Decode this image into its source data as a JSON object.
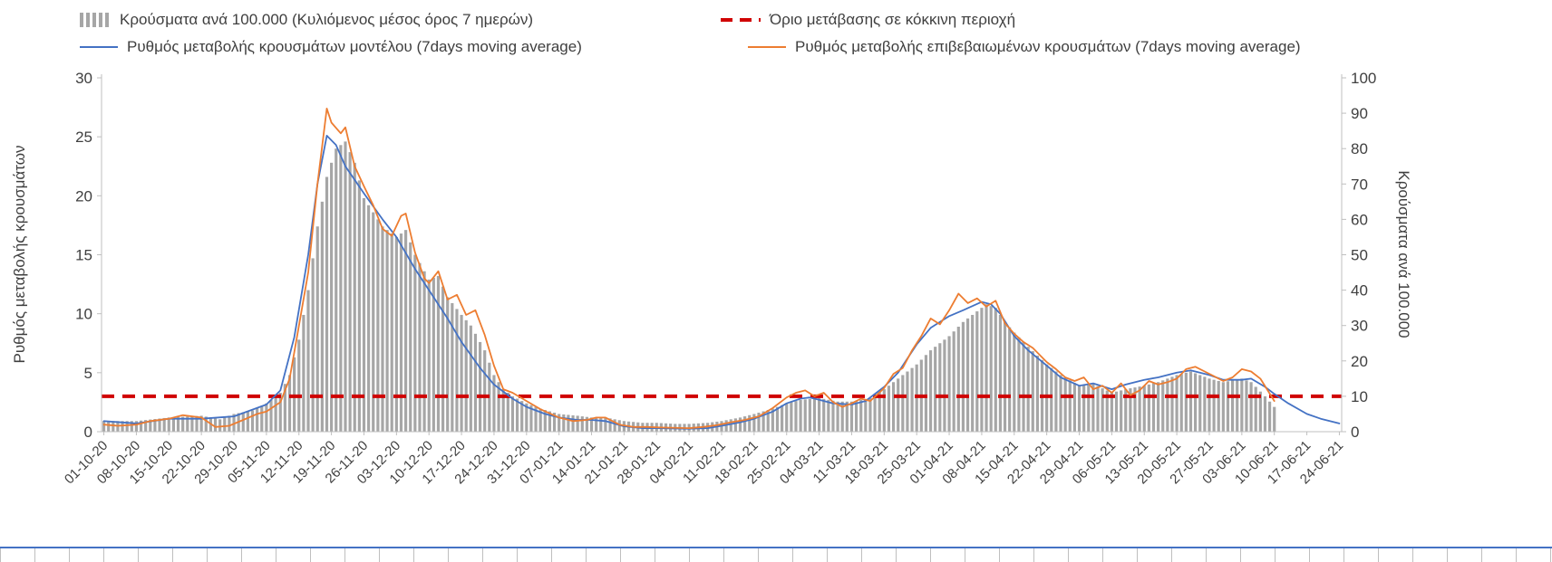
{
  "colors": {
    "bars": "#A6A6A6",
    "model_line": "#4472C4",
    "confirmed_line": "#ED7D31",
    "threshold_line": "#D00000",
    "axis": "#BFBFBF",
    "text": "#404040"
  },
  "chart_data": {
    "type": "combo-bar-line",
    "title": "",
    "legend_position": "top",
    "grid": false,
    "left_axis": {
      "label": "Ρυθμός μεταβολής κρουσμάτων",
      "range": [
        0,
        30
      ],
      "ticks": [
        0,
        5,
        10,
        15,
        20,
        25,
        30
      ]
    },
    "right_axis": {
      "label": "Κρούσματα ανά 100.000",
      "range": [
        0,
        100
      ],
      "ticks": [
        0,
        10,
        20,
        30,
        40,
        50,
        60,
        70,
        80,
        90,
        100
      ]
    },
    "x_axis": {
      "span_days": 266,
      "tick_interval_days": 7,
      "tick_labels": [
        "01-10-20",
        "08-10-20",
        "15-10-20",
        "22-10-20",
        "29-10-20",
        "05-11-20",
        "12-11-20",
        "19-11-20",
        "26-11-20",
        "03-12-20",
        "10-12-20",
        "17-12-20",
        "24-12-20",
        "31-12-20",
        "07-01-21",
        "14-01-21",
        "21-01-21",
        "28-01-21",
        "04-02-21",
        "11-02-21",
        "18-02-21",
        "25-02-21",
        "04-03-21",
        "11-03-21",
        "18-03-21",
        "25-03-21",
        "01-04-21",
        "08-04-21",
        "15-04-21",
        "22-04-21",
        "29-04-21",
        "06-05-21",
        "13-05-21",
        "20-05-21",
        "27-05-21",
        "03-06-21",
        "10-06-21",
        "17-06-21",
        "24-06-21"
      ]
    },
    "threshold": {
      "label": "Όριο μετάβασης σε κόκκινη περιοχή",
      "value": 3,
      "axis": "left",
      "style": "dashed",
      "color": "#D00000"
    },
    "series": [
      {
        "name": "Κρούσματα ανά 100.000 (Κυλιόμενος μέσος όρος 7 ημερών)",
        "type": "bar",
        "axis": "right",
        "color": "#A6A6A6",
        "points": [
          [
            0,
            3
          ],
          [
            7,
            3
          ],
          [
            14,
            4
          ],
          [
            21,
            4.5
          ],
          [
            25,
            3.5
          ],
          [
            28,
            5
          ],
          [
            32,
            6
          ],
          [
            35,
            8
          ],
          [
            38,
            11
          ],
          [
            40,
            16
          ],
          [
            42,
            26
          ],
          [
            44,
            40
          ],
          [
            46,
            58
          ],
          [
            48,
            72
          ],
          [
            50,
            80
          ],
          [
            52,
            82
          ],
          [
            54,
            76
          ],
          [
            56,
            66
          ],
          [
            58,
            62
          ],
          [
            60,
            58
          ],
          [
            63,
            55
          ],
          [
            65,
            57
          ],
          [
            67,
            50
          ],
          [
            70,
            43
          ],
          [
            72,
            44
          ],
          [
            74,
            38
          ],
          [
            77,
            33
          ],
          [
            79,
            30
          ],
          [
            82,
            23
          ],
          [
            84,
            16
          ],
          [
            86,
            12
          ],
          [
            88,
            10
          ],
          [
            91,
            8
          ],
          [
            94,
            6.5
          ],
          [
            98,
            5
          ],
          [
            102,
            4.5
          ],
          [
            105,
            4
          ],
          [
            108,
            4
          ],
          [
            112,
            3
          ],
          [
            116,
            2.5
          ],
          [
            119,
            2.5
          ],
          [
            123,
            2.2
          ],
          [
            126,
            2.2
          ],
          [
            130,
            2.5
          ],
          [
            133,
            3
          ],
          [
            137,
            4
          ],
          [
            140,
            5
          ],
          [
            144,
            6.5
          ],
          [
            147,
            8
          ],
          [
            150,
            9
          ],
          [
            154,
            9.5
          ],
          [
            158,
            8.5
          ],
          [
            161,
            8.5
          ],
          [
            165,
            9.5
          ],
          [
            168,
            12
          ],
          [
            171,
            15
          ],
          [
            175,
            19
          ],
          [
            178,
            23
          ],
          [
            182,
            27
          ],
          [
            185,
            31
          ],
          [
            188,
            34
          ],
          [
            190,
            36
          ],
          [
            192,
            35
          ],
          [
            194,
            31
          ],
          [
            196,
            28
          ],
          [
            199,
            24
          ],
          [
            203,
            19
          ],
          [
            206,
            16
          ],
          [
            210,
            13
          ],
          [
            213,
            13.5
          ],
          [
            217,
            11
          ],
          [
            220,
            12
          ],
          [
            224,
            13
          ],
          [
            227,
            14
          ],
          [
            231,
            16
          ],
          [
            234,
            17
          ],
          [
            238,
            15
          ],
          [
            241,
            14
          ],
          [
            245,
            15
          ],
          [
            247,
            14
          ],
          [
            250,
            10
          ],
          [
            252,
            7
          ]
        ]
      },
      {
        "name": "Ρυθμός μεταβολής κρουσμάτων μοντέλου (7days moving average)",
        "type": "line",
        "axis": "left",
        "color": "#4472C4",
        "points": [
          [
            0,
            0.9
          ],
          [
            7,
            0.7
          ],
          [
            14,
            1.1
          ],
          [
            21,
            1.1
          ],
          [
            28,
            1.3
          ],
          [
            35,
            2.3
          ],
          [
            38,
            3.5
          ],
          [
            41,
            8
          ],
          [
            44,
            15
          ],
          [
            46,
            21
          ],
          [
            48,
            25.1
          ],
          [
            50,
            24.3
          ],
          [
            52,
            22.5
          ],
          [
            56,
            20.2
          ],
          [
            60,
            18
          ],
          [
            63,
            16.5
          ],
          [
            67,
            13.8
          ],
          [
            70,
            12
          ],
          [
            74,
            9.6
          ],
          [
            77,
            7.6
          ],
          [
            81,
            5.4
          ],
          [
            84,
            4
          ],
          [
            88,
            2.8
          ],
          [
            91,
            2.1
          ],
          [
            95,
            1.5
          ],
          [
            98,
            1.2
          ],
          [
            102,
            1
          ],
          [
            105,
            1
          ],
          [
            108,
            0.9
          ],
          [
            112,
            0.45
          ],
          [
            116,
            0.3
          ],
          [
            119,
            0.3
          ],
          [
            126,
            0.25
          ],
          [
            130,
            0.3
          ],
          [
            133,
            0.5
          ],
          [
            137,
            0.8
          ],
          [
            140,
            1.1
          ],
          [
            144,
            1.7
          ],
          [
            147,
            2.4
          ],
          [
            150,
            2.8
          ],
          [
            152,
            2.9
          ],
          [
            154,
            2.7
          ],
          [
            157,
            2.4
          ],
          [
            161,
            2.3
          ],
          [
            164,
            2.6
          ],
          [
            168,
            3.8
          ],
          [
            171,
            5
          ],
          [
            175,
            7.4
          ],
          [
            178,
            8.8
          ],
          [
            182,
            9.8
          ],
          [
            185,
            10.3
          ],
          [
            189,
            11
          ],
          [
            191,
            10.8
          ],
          [
            193,
            10
          ],
          [
            196,
            8.1
          ],
          [
            199,
            6.9
          ],
          [
            203,
            5.6
          ],
          [
            206,
            4.6
          ],
          [
            210,
            3.9
          ],
          [
            213,
            4.1
          ],
          [
            217,
            3.6
          ],
          [
            220,
            4
          ],
          [
            224,
            4.4
          ],
          [
            227,
            4.6
          ],
          [
            231,
            5
          ],
          [
            234,
            5.2
          ],
          [
            238,
            4.8
          ],
          [
            241,
            4.4
          ],
          [
            245,
            4.4
          ],
          [
            247,
            4.5
          ],
          [
            250,
            3.8
          ],
          [
            252,
            3.2
          ],
          [
            255,
            2.4
          ],
          [
            259,
            1.5
          ],
          [
            262,
            1.1
          ],
          [
            266,
            0.7
          ]
        ]
      },
      {
        "name": "Ρυθμός μεταβολής επιβεβαιωμένων κρουσμάτων (7days moving average)",
        "type": "line",
        "axis": "left",
        "color": "#ED7D31",
        "points": [
          [
            0,
            0.6
          ],
          [
            3,
            0.5
          ],
          [
            7,
            0.6
          ],
          [
            10,
            0.9
          ],
          [
            14,
            1.1
          ],
          [
            17,
            1.4
          ],
          [
            21,
            1.2
          ],
          [
            24,
            0.4
          ],
          [
            27,
            0.5
          ],
          [
            30,
            1
          ],
          [
            33,
            1.5
          ],
          [
            35,
            1.7
          ],
          [
            38,
            2.5
          ],
          [
            40,
            4.5
          ],
          [
            42,
            9
          ],
          [
            44,
            13.5
          ],
          [
            46,
            21
          ],
          [
            48,
            27.4
          ],
          [
            49,
            26.2
          ],
          [
            51,
            25.3
          ],
          [
            52,
            25.8
          ],
          [
            54,
            22.5
          ],
          [
            56,
            20.8
          ],
          [
            58,
            19.2
          ],
          [
            60,
            17.2
          ],
          [
            62,
            16.6
          ],
          [
            64,
            18.3
          ],
          [
            65,
            18.5
          ],
          [
            67,
            15.2
          ],
          [
            69,
            13
          ],
          [
            70,
            12.6
          ],
          [
            72,
            13.6
          ],
          [
            74,
            11.2
          ],
          [
            76,
            11.6
          ],
          [
            78,
            9.9
          ],
          [
            80,
            10.3
          ],
          [
            82,
            8.2
          ],
          [
            84,
            5.6
          ],
          [
            86,
            3.6
          ],
          [
            88,
            3.3
          ],
          [
            91,
            2.6
          ],
          [
            94,
            1.9
          ],
          [
            98,
            1.2
          ],
          [
            101,
            0.9
          ],
          [
            104,
            1
          ],
          [
            106,
            1.2
          ],
          [
            108,
            1.2
          ],
          [
            111,
            0.6
          ],
          [
            114,
            0.4
          ],
          [
            117,
            0.4
          ],
          [
            120,
            0.35
          ],
          [
            126,
            0.3
          ],
          [
            129,
            0.4
          ],
          [
            132,
            0.55
          ],
          [
            135,
            0.8
          ],
          [
            138,
            1
          ],
          [
            141,
            1.3
          ],
          [
            144,
            2
          ],
          [
            147,
            2.9
          ],
          [
            149,
            3.3
          ],
          [
            151,
            3.5
          ],
          [
            153,
            3
          ],
          [
            155,
            3.3
          ],
          [
            157,
            2.5
          ],
          [
            159,
            2.1
          ],
          [
            161,
            2.4
          ],
          [
            163,
            2.8
          ],
          [
            165,
            2.6
          ],
          [
            168,
            3.7
          ],
          [
            170,
            4.9
          ],
          [
            172,
            5.4
          ],
          [
            174,
            6.9
          ],
          [
            176,
            8.1
          ],
          [
            178,
            9.6
          ],
          [
            180,
            9.1
          ],
          [
            182,
            10.3
          ],
          [
            184,
            11.7
          ],
          [
            186,
            10.9
          ],
          [
            188,
            11.3
          ],
          [
            190,
            10.6
          ],
          [
            192,
            11.1
          ],
          [
            194,
            9.2
          ],
          [
            196,
            8.3
          ],
          [
            198,
            7.6
          ],
          [
            200,
            7.1
          ],
          [
            203,
            5.9
          ],
          [
            205,
            5.3
          ],
          [
            207,
            4.6
          ],
          [
            209,
            4.3
          ],
          [
            211,
            4.6
          ],
          [
            213,
            3.6
          ],
          [
            215,
            3.9
          ],
          [
            217,
            3.3
          ],
          [
            219,
            4.1
          ],
          [
            221,
            3.1
          ],
          [
            223,
            3.5
          ],
          [
            225,
            4.3
          ],
          [
            227,
            4
          ],
          [
            229,
            4.2
          ],
          [
            231,
            4.5
          ],
          [
            233,
            5.3
          ],
          [
            235,
            5.5
          ],
          [
            237,
            5.1
          ],
          [
            239,
            4.7
          ],
          [
            241,
            4.3
          ],
          [
            243,
            4.6
          ],
          [
            245,
            5.3
          ],
          [
            247,
            5.1
          ],
          [
            249,
            4.5
          ],
          [
            252,
            2.6
          ]
        ]
      }
    ]
  }
}
